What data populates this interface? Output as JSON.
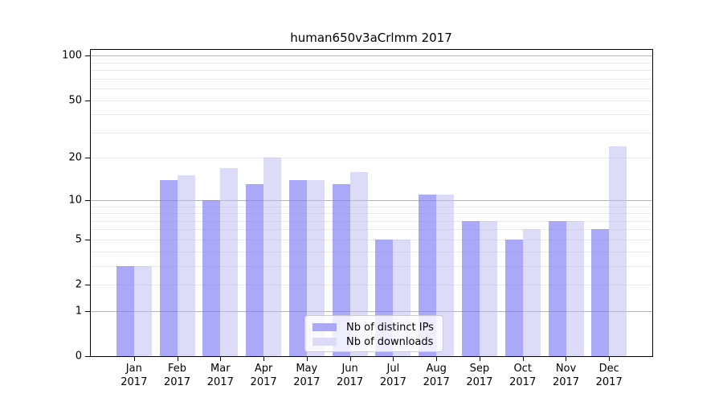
{
  "title": "human650v3aCrlmm 2017",
  "chart_data": {
    "type": "bar",
    "title": "human650v3aCrlmm 2017",
    "categories": [
      "Jan",
      "Feb",
      "Mar",
      "Apr",
      "May",
      "Jun",
      "Jul",
      "Aug",
      "Sep",
      "Oct",
      "Nov",
      "Dec"
    ],
    "category_year": "2017",
    "series": [
      {
        "name": "Nb of distinct IPs",
        "color": "#a9a9f7",
        "values": [
          3,
          14,
          10,
          13,
          14,
          13,
          5,
          11,
          7,
          5,
          7,
          6
        ]
      },
      {
        "name": "Nb of downloads",
        "color": "#dcdcf8",
        "values": [
          3,
          15,
          17,
          20,
          14,
          16,
          5,
          11,
          7,
          6,
          7,
          24
        ]
      }
    ],
    "xlabel": "",
    "ylabel": "",
    "y_axis": {
      "scale": "log10(1+y)",
      "tick_values": [
        100,
        50,
        20,
        10,
        5,
        2,
        1,
        0
      ],
      "grid_major_values": [
        1,
        10,
        100
      ],
      "grid_minor_values": [
        2,
        3,
        4,
        5,
        6,
        7,
        8,
        9,
        20,
        30,
        40,
        50,
        60,
        70,
        80,
        90
      ],
      "range": [
        0,
        110
      ]
    },
    "grid": true,
    "legend_position": "lower center",
    "colors": {
      "grid_major": "#b4b4b4",
      "grid_minor": "#e9e9e9",
      "axis_spine": "#000000",
      "legend_border": "#cccccc"
    }
  }
}
